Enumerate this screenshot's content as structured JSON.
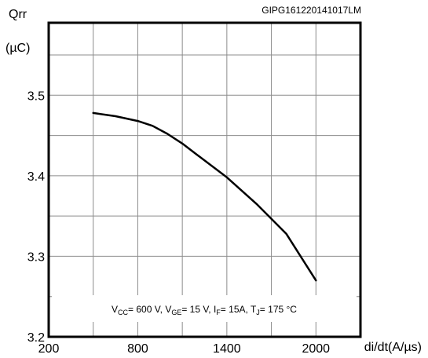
{
  "figure_id": "GIPG161220141017LM",
  "chart_data": {
    "type": "line",
    "xlabel": "di/dt(A/µs)",
    "ylabel": "Qrr",
    "ylabel_unit": "(µC)",
    "x_ticks": [
      "200",
      "800",
      "1400",
      "2000"
    ],
    "y_ticks": [
      "3.2",
      "3.3",
      "3.4",
      "3.5"
    ],
    "xlim": [
      200,
      2300
    ],
    "ylim": [
      3.2,
      3.59
    ],
    "grid": true,
    "series": [
      {
        "x": [
          500,
          650,
          800,
          900,
          1000,
          1100,
          1200,
          1400,
          1600,
          1800,
          2000
        ],
        "y": [
          3.478,
          3.474,
          3.468,
          3.462,
          3.452,
          3.44,
          3.426,
          3.398,
          3.365,
          3.328,
          3.27
        ]
      }
    ],
    "conditions": {
      "vcc_label": "V",
      "vcc_sub": "CC",
      "vcc_value": "= 600 V,",
      "vge_label": "V",
      "vge_sub": "GE",
      "vge_value": "= 15 V,",
      "if_label": "I",
      "if_sub": "F",
      "if_value": "= 15A,",
      "tj_label": "T",
      "tj_sub": "J",
      "tj_value": "= 175 °C"
    }
  }
}
